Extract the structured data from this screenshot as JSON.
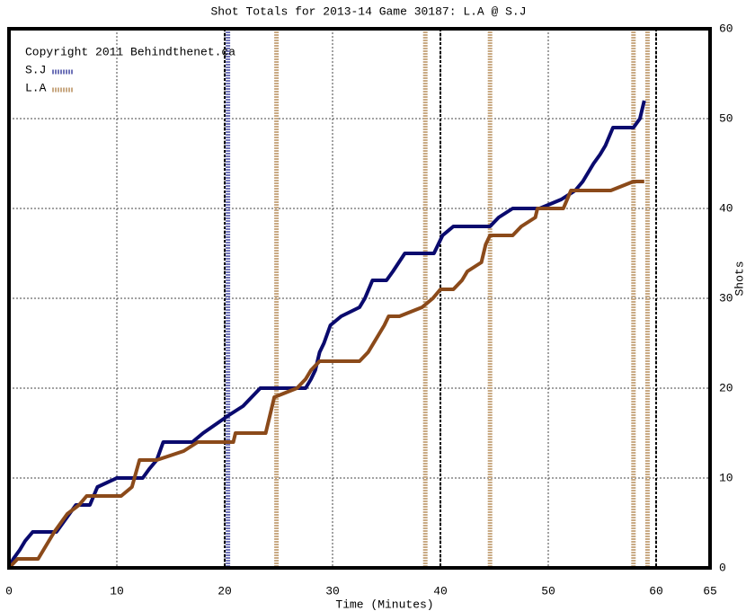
{
  "chart_data": {
    "type": "line",
    "title": "Shot Totals for 2013-14 Game 30187: L.A @ S.J",
    "copyright": "Copyright 2011 Behindthenet.ca",
    "xlabel": "Time (Minutes)",
    "ylabel": "Shots",
    "xlim": [
      0,
      65
    ],
    "ylim": [
      0,
      60
    ],
    "xticks": [
      0,
      10,
      20,
      30,
      40,
      50,
      60,
      65
    ],
    "yticks": [
      0,
      10,
      20,
      30,
      40,
      50,
      60
    ],
    "grid": true,
    "period_ends": [
      20,
      40,
      60
    ],
    "legend": "upper left",
    "series": [
      {
        "name": "S.J",
        "color": "#0a0a6e",
        "goal_color": "#7074b8",
        "goals": [
          20.3
        ],
        "x": [
          0,
          0.4,
          1,
          1.5,
          2.2,
          4.4,
          5,
          6.2,
          7.5,
          8.2,
          10,
          12.4,
          13,
          13.7,
          14.3,
          17,
          18,
          19.2,
          20.4,
          21.7,
          23.3,
          27.5,
          28,
          28.4,
          28.8,
          29.2,
          29.8,
          30.8,
          32.5,
          33,
          33.7,
          35,
          35.6,
          36.7,
          39.4,
          39.8,
          40.2,
          41.2,
          44.6,
          45.4,
          46.7,
          49.2,
          51.2,
          52.5,
          53.2,
          54.2,
          54.8,
          55.3,
          56,
          57.9,
          58.5,
          58.9
        ],
        "values": [
          0,
          1,
          2,
          3,
          4,
          4,
          5,
          7,
          7,
          9,
          10,
          10,
          11,
          12,
          14,
          14,
          15,
          16,
          17,
          18,
          20,
          20,
          21,
          22,
          24,
          25,
          27,
          28,
          29,
          30,
          32,
          32,
          33,
          35,
          35,
          36,
          37,
          38,
          38,
          39,
          40,
          40,
          41,
          42,
          43,
          45,
          46,
          47,
          49,
          49,
          50,
          52
        ]
      },
      {
        "name": "L.A",
        "color": "#8b4a1a",
        "goal_color": "#c9aa84",
        "goals": [
          24.8,
          38.6,
          44.6,
          57.9,
          59.2
        ],
        "x": [
          0,
          0.8,
          2.7,
          4.2,
          5.4,
          6.5,
          7.2,
          10.4,
          11.4,
          12.1,
          13.7,
          16.2,
          17.5,
          20.8,
          21,
          23.8,
          24.2,
          24.6,
          26.7,
          27.5,
          28,
          28.8,
          32.5,
          33.3,
          34.3,
          34.8,
          35.2,
          36.2,
          38.3,
          39.3,
          40,
          41.2,
          42,
          42.5,
          43.8,
          44.2,
          44.6,
          46.7,
          47.5,
          48.8,
          49,
          51.4,
          52.1,
          55.8,
          57.9,
          58.9
        ],
        "values": [
          0,
          1,
          1,
          4,
          6,
          7,
          8,
          8,
          9,
          12,
          12,
          13,
          14,
          14,
          15,
          15,
          17,
          19,
          20,
          21,
          22,
          23,
          23,
          24,
          26,
          27,
          28,
          28,
          29,
          30,
          31,
          31,
          32,
          33,
          34,
          36,
          37,
          37,
          38,
          39,
          40,
          40,
          42,
          42,
          43,
          43
        ]
      }
    ]
  }
}
